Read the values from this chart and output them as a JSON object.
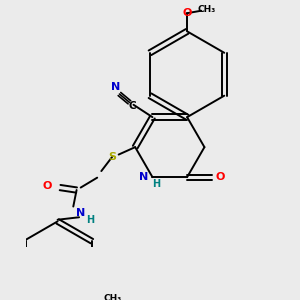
{
  "background_color": "#ebebeb",
  "bond_color": "#000000",
  "atom_colors": {
    "N": "#0000cc",
    "O": "#ff0000",
    "S": "#aaaa00",
    "H": "#008080",
    "C": "#000000"
  },
  "figsize": [
    3.0,
    3.0
  ],
  "dpi": 100
}
